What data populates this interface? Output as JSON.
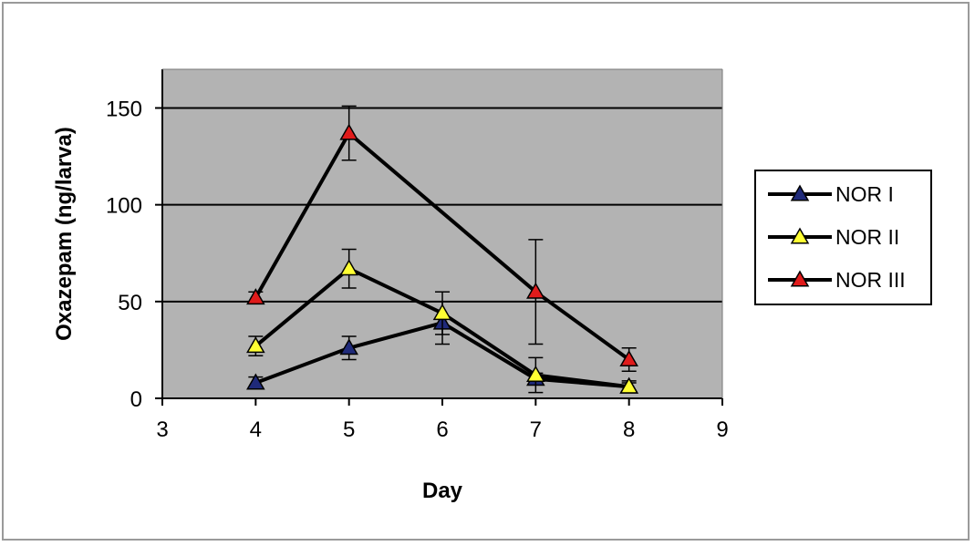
{
  "chart_data": {
    "type": "line",
    "xlabel": "Day",
    "ylabel": "Oxazepam (ng/larva)",
    "xlim": [
      3,
      9
    ],
    "ylim": [
      0,
      170
    ],
    "x_ticks": [
      3,
      4,
      5,
      6,
      7,
      8,
      9
    ],
    "y_ticks": [
      0,
      50,
      100,
      150
    ],
    "grid": "horizontal",
    "legend_position": "right",
    "plot_background": "#b3b3b3",
    "series": [
      {
        "name": "NOR I",
        "color": "#1f2a7a",
        "marker": "triangle",
        "x": [
          4,
          5,
          6,
          7,
          8
        ],
        "y": [
          8,
          26,
          39,
          10,
          6
        ],
        "err": [
          3,
          6,
          11,
          3,
          2
        ]
      },
      {
        "name": "NOR II",
        "color": "#ffff33",
        "marker": "triangle",
        "x": [
          4,
          5,
          6,
          7,
          8
        ],
        "y": [
          27,
          67,
          44,
          12,
          6
        ],
        "err": [
          5,
          10,
          11,
          9,
          3
        ]
      },
      {
        "name": "NOR III",
        "color": "#e01b1b",
        "marker": "triangle",
        "x": [
          4,
          5,
          6,
          7,
          8
        ],
        "y": [
          52,
          137,
          null,
          55,
          20
        ],
        "err": [
          3,
          14,
          null,
          27,
          6
        ]
      }
    ]
  }
}
